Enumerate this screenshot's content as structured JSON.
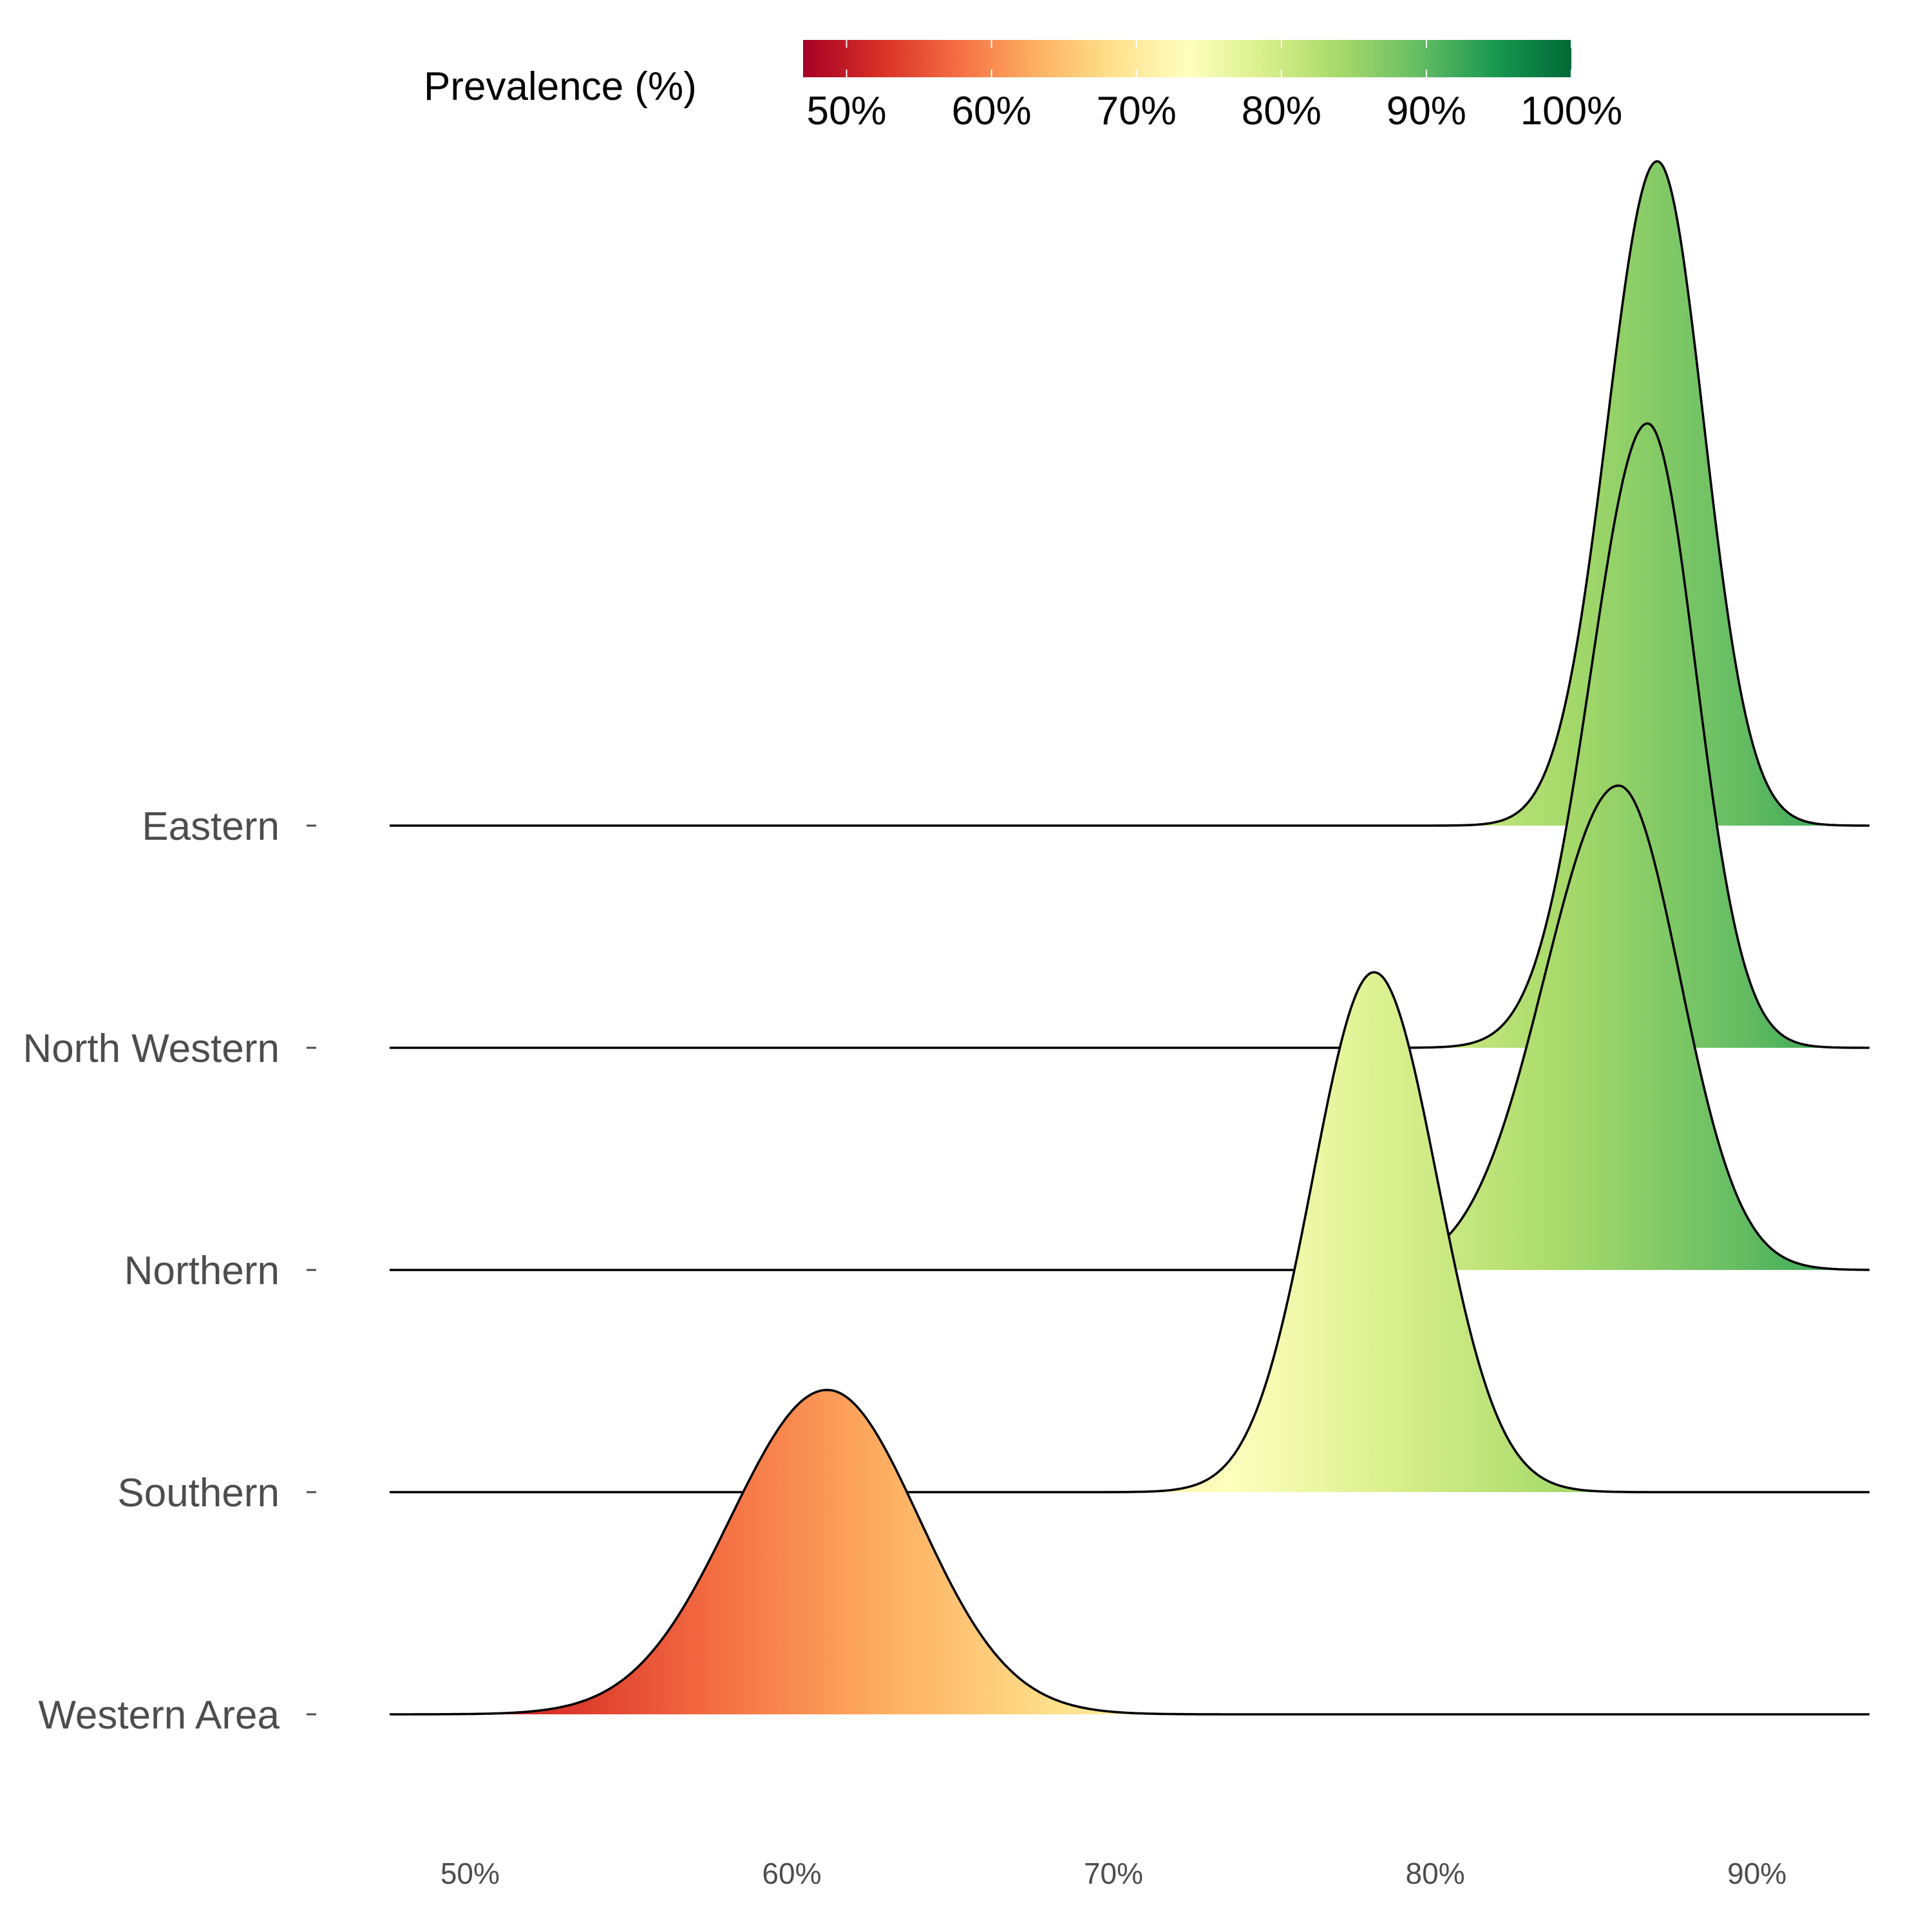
{
  "chart_data": {
    "type": "ridgeline",
    "title": "",
    "xlabel": "",
    "ylabel": "",
    "x_ticks": [
      50,
      60,
      70,
      80,
      90
    ],
    "x_tick_labels": [
      "50%",
      "60%",
      "70%",
      "80%",
      "90%"
    ],
    "xlim": [
      47.5,
      93.5
    ],
    "legend": {
      "title": "Prevalence (%)",
      "position": "top",
      "range": [
        47,
        100
      ],
      "ticks": [
        50,
        60,
        70,
        80,
        90,
        100
      ],
      "tick_labels": [
        "50%",
        "60%",
        "70%",
        "80%",
        "90%",
        "100%"
      ],
      "palette": [
        "#a50026",
        "#d73027",
        "#f46d43",
        "#fdae61",
        "#fee08b",
        "#ffffbf",
        "#d9ef8b",
        "#a6d96a",
        "#66bd63",
        "#1a9850",
        "#006837"
      ]
    },
    "series": [
      {
        "name": "Eastern",
        "mode": 86.9,
        "sd_left": 1.55,
        "sd_right": 1.45,
        "peak_height": 2.99,
        "min": 79.5,
        "max": 92.5
      },
      {
        "name": "North Western",
        "mode": 86.6,
        "sd_left": 1.75,
        "sd_right": 1.5,
        "peak_height": 2.81,
        "min": 79.5,
        "max": 92.5
      },
      {
        "name": "Northern",
        "mode": 85.7,
        "sd_left": 2.3,
        "sd_right": 1.9,
        "peak_height": 2.18,
        "min": 79.5,
        "max": 93.5
      },
      {
        "name": "Southern",
        "mode": 78.1,
        "sd_left": 1.9,
        "sd_right": 1.95,
        "peak_height": 2.34,
        "min": 70.5,
        "max": 84.5
      },
      {
        "name": "Western Area",
        "mode": 61.1,
        "sd_left": 3.0,
        "sd_right": 2.85,
        "peak_height": 1.46,
        "min": 48.0,
        "max": 71.5
      }
    ]
  }
}
